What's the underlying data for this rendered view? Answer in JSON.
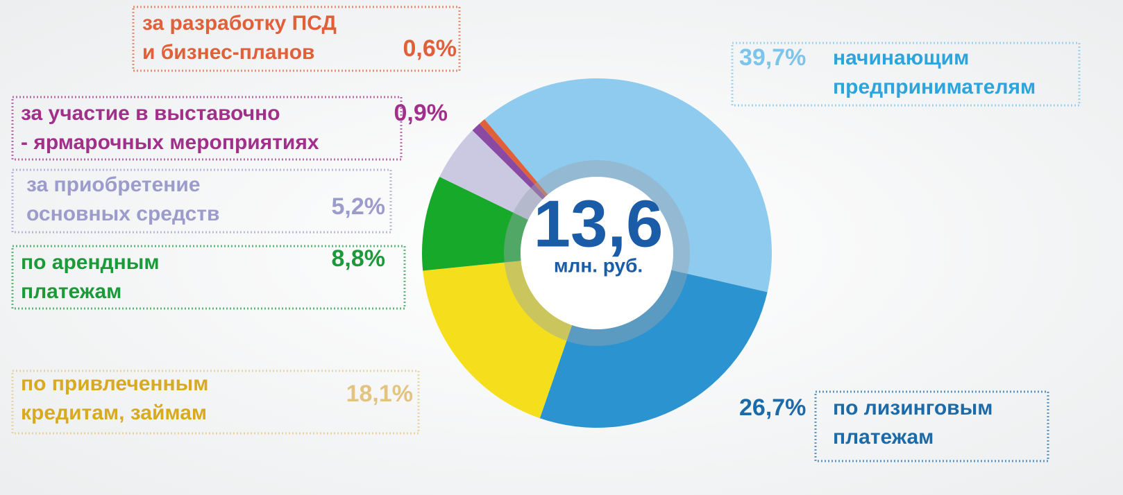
{
  "chart_data": {
    "type": "donut",
    "categories": [
      [
        "начинающим",
        "предпринимателям"
      ],
      [
        "по лизинговым",
        "платежам"
      ],
      [
        "по привлеченным",
        "кредитам, займам"
      ],
      [
        "по арендным",
        "платежам"
      ],
      [
        "за приобретение",
        "основных средств"
      ],
      [
        "за участие в выставочно",
        "- ярмарочных мероприятиях"
      ],
      [
        "за разработку ПСД",
        "и бизнес-планов"
      ]
    ],
    "values": [
      39.7,
      26.7,
      18.1,
      8.8,
      5.2,
      0.9,
      0.6
    ],
    "value_labels": [
      "39,7%",
      "26,7%",
      "18,1%",
      "8,8%",
      "5,2%",
      "0,9%",
      "0,6%"
    ],
    "colors": [
      "#8ecbef",
      "#2a93d0",
      "#f5df1c",
      "#16a92a",
      "#cbc8e2",
      "#8a4aa3",
      "#e0603a"
    ],
    "center_value": "13,6",
    "center_unit": "млн. руб."
  }
}
